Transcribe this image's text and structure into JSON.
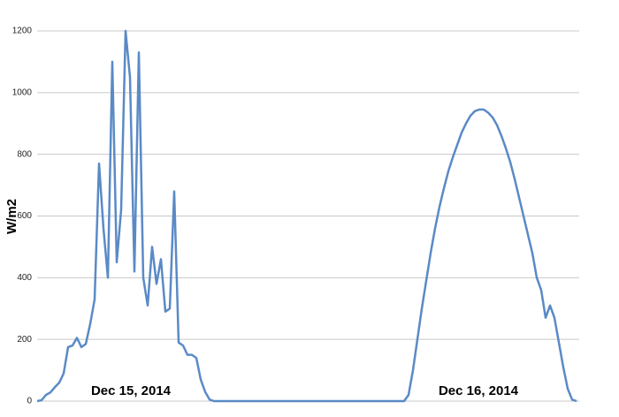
{
  "chart_data": {
    "type": "line",
    "y_label": "W/m2",
    "annotations": [
      "Dec 15, 2014",
      "Dec 16, 2014"
    ],
    "values": [
      0,
      3,
      20,
      28,
      45,
      60,
      90,
      175,
      180,
      205,
      175,
      185,
      250,
      330,
      770,
      560,
      400,
      1100,
      450,
      620,
      1200,
      1050,
      420,
      1130,
      400,
      310,
      500,
      380,
      460,
      290,
      300,
      680,
      190,
      180,
      150,
      150,
      140,
      70,
      30,
      5,
      0,
      0,
      0,
      0,
      0,
      0,
      0,
      0,
      0,
      0,
      0,
      0,
      0,
      0,
      0,
      0,
      0,
      0,
      0,
      0,
      0,
      0,
      0,
      0,
      0,
      0,
      0,
      0,
      0,
      0,
      0,
      0,
      0,
      0,
      0,
      0,
      0,
      0,
      0,
      0,
      0,
      0,
      0,
      0,
      20,
      100,
      200,
      300,
      390,
      480,
      560,
      630,
      690,
      745,
      790,
      830,
      870,
      900,
      925,
      940,
      945,
      945,
      935,
      920,
      895,
      860,
      820,
      775,
      720,
      660,
      600,
      540,
      480,
      400,
      360,
      270,
      310,
      270,
      190,
      110,
      40,
      5,
      0
    ],
    "color": "#5a8ac6",
    "ylim": [
      0,
      1200
    ],
    "yticks": [
      0,
      200,
      400,
      600,
      800,
      1000,
      1200
    ],
    "grid": true
  }
}
